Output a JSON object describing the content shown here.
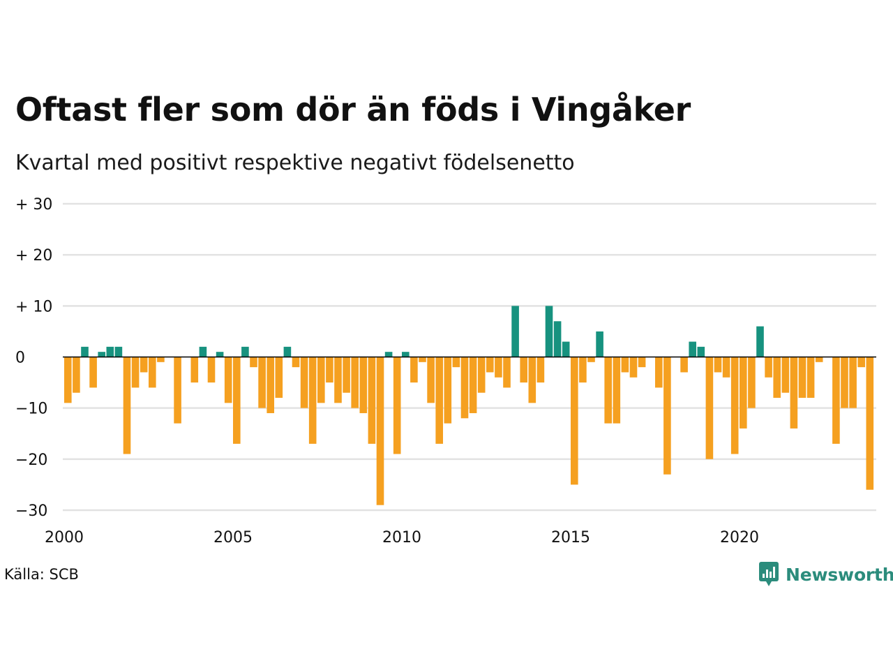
{
  "title": "Oftast fler som dör än föds i Vingåker",
  "subtitle": "Kvartal med positivt respektive negativt födelsenetto",
  "source": "Källa: SCB",
  "brand": "Newsworthy",
  "colors": {
    "positive": "#17927f",
    "negative": "#f5a020",
    "grid": "#e2e2e2",
    "zero_line": "#000000",
    "brand": "#2b8c7c"
  },
  "chart_data": {
    "type": "bar",
    "x_start": "2000 Q1",
    "x_end": "2023 Q4",
    "ylim": [
      -30,
      30
    ],
    "grid": true,
    "yticks": [
      30,
      20,
      10,
      0,
      -10,
      -20,
      -30
    ],
    "ytick_labels": [
      "+ 30",
      "+ 20",
      "+ 10",
      "0",
      "−10",
      "−20",
      "−30"
    ],
    "xticks": [
      2000,
      2005,
      2010,
      2015,
      2020
    ],
    "xtick_labels": [
      "2000",
      "2005",
      "2010",
      "2015",
      "2020"
    ],
    "values": [
      -9,
      -7,
      2,
      -6,
      1,
      2,
      2,
      -19,
      -6,
      -3,
      -6,
      -1,
      0,
      -13,
      0,
      -5,
      2,
      -5,
      1,
      -9,
      -17,
      2,
      -2,
      -10,
      -11,
      -8,
      2,
      -2,
      -10,
      -17,
      -9,
      -5,
      -9,
      -7,
      -10,
      -11,
      -17,
      -29,
      1,
      -19,
      1,
      -5,
      -1,
      -9,
      -17,
      -13,
      -2,
      -12,
      -11,
      -7,
      -3,
      -4,
      -6,
      10,
      -5,
      -9,
      -5,
      10,
      7,
      3,
      -25,
      -5,
      -1,
      5,
      -13,
      -13,
      -3,
      -4,
      -2,
      0,
      -6,
      -23,
      0,
      -3,
      3,
      2,
      -20,
      -3,
      -4,
      -19,
      -14,
      -10,
      6,
      -4,
      -8,
      -7,
      -14,
      -8,
      -8,
      -1,
      0,
      -17,
      -10,
      -10,
      -2,
      -26
    ]
  }
}
